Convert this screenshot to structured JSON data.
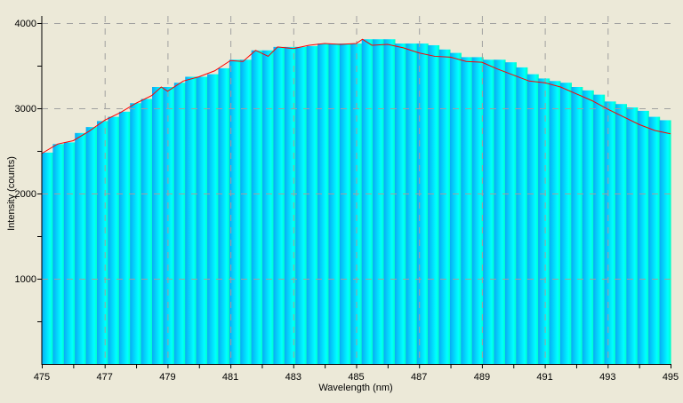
{
  "chart_data": {
    "type": "bar",
    "title": "",
    "xlabel": "Wavelength (nm)",
    "ylabel": "Intensity (counts)",
    "xlim": [
      475,
      495
    ],
    "ylim": [
      0,
      4000
    ],
    "x_ticks": [
      475,
      477,
      479,
      481,
      483,
      485,
      487,
      489,
      491,
      493,
      495
    ],
    "y_ticks": [
      1000,
      2000,
      3000,
      4000
    ],
    "grid": true,
    "fill": "spectral color gradient (blue to cyan to green)",
    "colors": {
      "background": "#ece9d8",
      "grid": "#a0a0a0",
      "line": "#ff0000",
      "fill_start": "#09aaf5",
      "fill_mid": "#00ffff",
      "fill_end": "#00ffc0"
    },
    "bars": [
      2480,
      2580,
      2600,
      2710,
      2780,
      2850,
      2900,
      2960,
      3060,
      3110,
      3250,
      3250,
      3300,
      3370,
      3370,
      3400,
      3470,
      3570,
      3570,
      3680,
      3680,
      3720,
      3720,
      3720,
      3730,
      3760,
      3760,
      3760,
      3760,
      3810,
      3810,
      3810,
      3760,
      3760,
      3760,
      3740,
      3690,
      3650,
      3600,
      3600,
      3570,
      3570,
      3540,
      3480,
      3400,
      3350,
      3320,
      3300,
      3250,
      3210,
      3160,
      3080,
      3050,
      3010,
      2970,
      2900,
      2860
    ],
    "line": {
      "x": [
        475,
        475.5,
        476,
        476.5,
        477,
        477.5,
        478,
        478.5,
        478.8,
        479,
        479.5,
        480,
        480.5,
        481,
        481.4,
        481.8,
        482.2,
        482.5,
        483,
        483.5,
        484,
        484.5,
        485,
        485.2,
        485.5,
        486,
        486.5,
        487,
        487.5,
        488,
        488.5,
        489,
        489.5,
        490,
        490.5,
        491,
        491.5,
        492,
        492.5,
        493,
        493.5,
        494,
        494.5,
        495
      ],
      "y": [
        2470,
        2580,
        2620,
        2730,
        2860,
        2950,
        3060,
        3150,
        3250,
        3200,
        3320,
        3370,
        3440,
        3560,
        3550,
        3680,
        3610,
        3720,
        3700,
        3740,
        3760,
        3750,
        3760,
        3810,
        3740,
        3750,
        3710,
        3650,
        3610,
        3600,
        3550,
        3540,
        3460,
        3390,
        3320,
        3300,
        3250,
        3170,
        3090,
        2990,
        2900,
        2810,
        2740,
        2700
      ]
    }
  }
}
